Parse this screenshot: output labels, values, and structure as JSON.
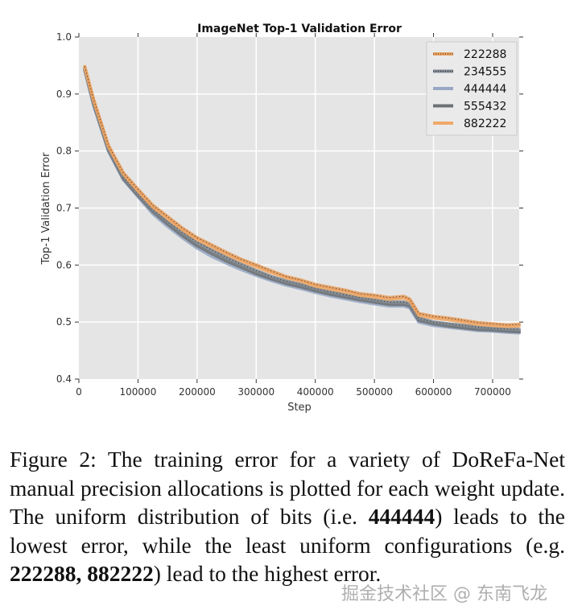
{
  "chart_data": {
    "type": "line",
    "title": "ImageNet Top-1 Validation Error",
    "xlabel": "Step",
    "ylabel": "Top-1 Validation Error",
    "xlim": [
      0,
      745000
    ],
    "ylim": [
      0.4,
      1.0
    ],
    "xticks": [
      0,
      100000,
      200000,
      300000,
      400000,
      500000,
      600000,
      700000
    ],
    "xtick_labels": [
      "0",
      "100000",
      "200000",
      "300000",
      "400000",
      "500000",
      "600000",
      "700000"
    ],
    "yticks": [
      0.4,
      0.5,
      0.6,
      0.7,
      0.8,
      0.9,
      1.0
    ],
    "ytick_labels": [
      "0.4",
      "0.5",
      "0.6",
      "0.7",
      "0.8",
      "0.9",
      "1.0"
    ],
    "grid": true,
    "legend_position": "top-right",
    "x": [
      10000,
      25000,
      50000,
      75000,
      100000,
      125000,
      150000,
      175000,
      200000,
      225000,
      250000,
      275000,
      300000,
      325000,
      350000,
      375000,
      400000,
      425000,
      450000,
      475000,
      500000,
      525000,
      550000,
      560000,
      575000,
      600000,
      625000,
      650000,
      675000,
      700000,
      725000,
      745000
    ],
    "series": [
      {
        "name": "222288",
        "color": "#e8a060",
        "style": "dotted",
        "values": [
          0.948,
          0.89,
          0.81,
          0.762,
          0.733,
          0.705,
          0.685,
          0.665,
          0.648,
          0.635,
          0.622,
          0.61,
          0.6,
          0.59,
          0.58,
          0.574,
          0.566,
          0.561,
          0.556,
          0.55,
          0.547,
          0.543,
          0.545,
          0.54,
          0.515,
          0.51,
          0.507,
          0.503,
          0.499,
          0.497,
          0.495,
          0.496
        ]
      },
      {
        "name": "234555",
        "color": "#808890",
        "style": "dotted",
        "values": [
          0.945,
          0.885,
          0.805,
          0.755,
          0.725,
          0.698,
          0.676,
          0.658,
          0.64,
          0.626,
          0.613,
          0.601,
          0.59,
          0.58,
          0.572,
          0.566,
          0.559,
          0.553,
          0.548,
          0.543,
          0.539,
          0.535,
          0.535,
          0.532,
          0.507,
          0.5,
          0.497,
          0.494,
          0.491,
          0.489,
          0.488,
          0.487
        ]
      },
      {
        "name": "444444",
        "color": "#98a8c4",
        "style": "solid",
        "values": [
          0.942,
          0.88,
          0.8,
          0.75,
          0.72,
          0.69,
          0.668,
          0.648,
          0.63,
          0.615,
          0.603,
          0.592,
          0.582,
          0.573,
          0.565,
          0.559,
          0.552,
          0.546,
          0.541,
          0.536,
          0.532,
          0.528,
          0.528,
          0.525,
          0.5,
          0.494,
          0.491,
          0.488,
          0.485,
          0.484,
          0.482,
          0.481
        ]
      },
      {
        "name": "555432",
        "color": "#6e7276",
        "style": "solid",
        "values": [
          0.943,
          0.882,
          0.802,
          0.752,
          0.722,
          0.694,
          0.672,
          0.652,
          0.634,
          0.62,
          0.607,
          0.596,
          0.585,
          0.576,
          0.568,
          0.562,
          0.555,
          0.549,
          0.544,
          0.539,
          0.535,
          0.531,
          0.531,
          0.528,
          0.503,
          0.497,
          0.493,
          0.49,
          0.487,
          0.486,
          0.484,
          0.483
        ]
      },
      {
        "name": "882222",
        "color": "#f0a868",
        "style": "solid",
        "values": [
          0.947,
          0.888,
          0.808,
          0.76,
          0.73,
          0.702,
          0.682,
          0.662,
          0.645,
          0.632,
          0.619,
          0.607,
          0.597,
          0.587,
          0.578,
          0.572,
          0.563,
          0.558,
          0.553,
          0.547,
          0.544,
          0.54,
          0.542,
          0.537,
          0.512,
          0.507,
          0.504,
          0.5,
          0.496,
          0.494,
          0.492,
          0.493
        ]
      }
    ]
  },
  "caption": {
    "prefix": "Figure 2: The training error for a variety of DoReFa-Net manual precision allocations is plotted for each weight update.  The uniform distribution of bits (i.e. ",
    "bold1": "444444",
    "mid": ") leads to the lowest error, while the least uniform configurations (e.g. ",
    "bold2": "222288, 882222",
    "suffix": ") lead to the highest error."
  },
  "watermark": "掘金技术社区 @ 东南飞龙",
  "colors": {
    "plot_bg": "#e5e5e5",
    "grid": "#ffffff"
  }
}
